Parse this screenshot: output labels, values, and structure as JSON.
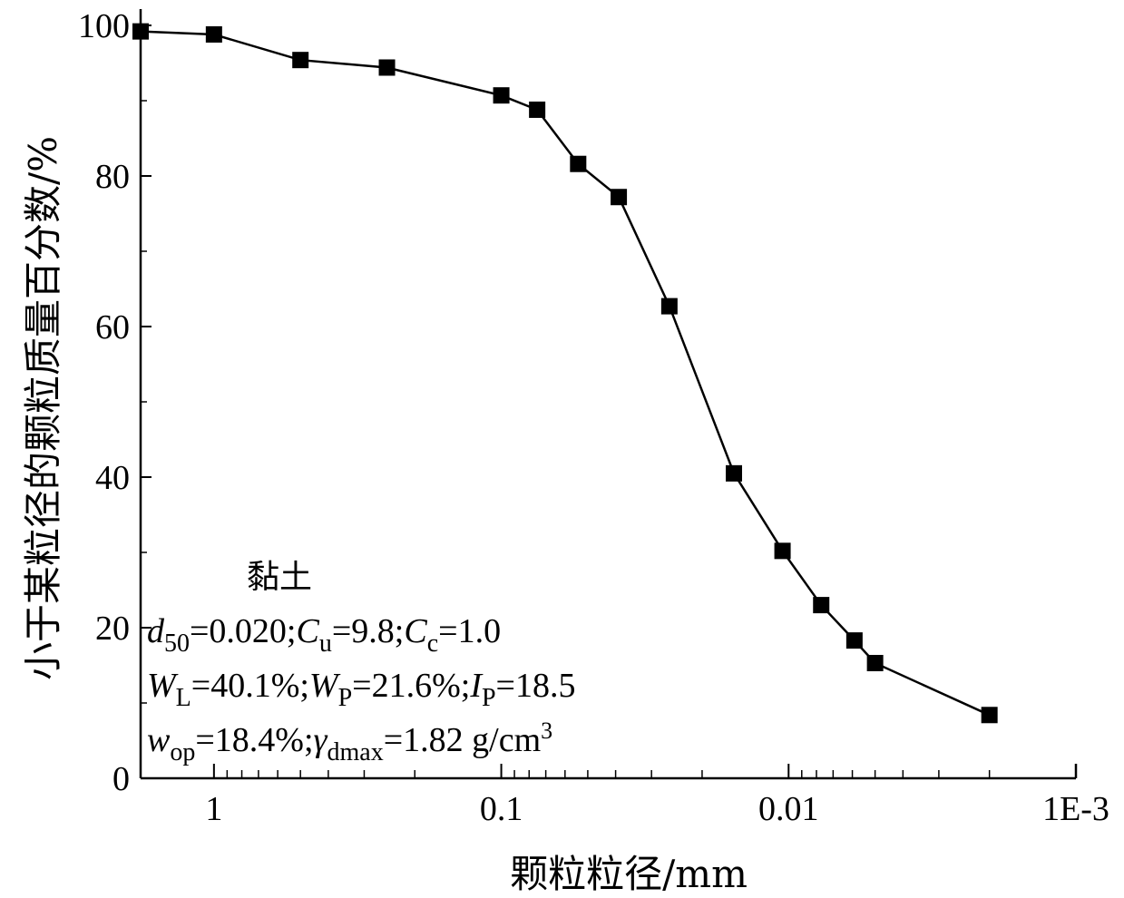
{
  "chart_data": {
    "type": "line",
    "x_scale": "log",
    "x_reversed": true,
    "xlim": [
      1.8,
      0.001
    ],
    "ylim": [
      0,
      100
    ],
    "xlabel": "颗粒粒径/mm",
    "ylabel": "小于某粒径的颗粒质量百分数/%",
    "x_ticks": [
      {
        "value": 1,
        "label": "1"
      },
      {
        "value": 0.1,
        "label": "0.1"
      },
      {
        "value": 0.01,
        "label": "0.01"
      },
      {
        "value": 0.001,
        "label": "1E-3"
      }
    ],
    "y_ticks": [
      0,
      20,
      40,
      60,
      80,
      100
    ],
    "marker": "square",
    "series": [
      {
        "x": [
          1.8,
          1.0,
          0.5,
          0.25,
          0.1,
          0.075,
          0.054,
          0.039,
          0.026,
          0.0155,
          0.0105,
          0.0077,
          0.0059,
          0.005,
          0.002
        ],
        "y": [
          99.2,
          98.8,
          95.4,
          94.4,
          90.7,
          88.8,
          81.6,
          77.2,
          62.7,
          40.5,
          30.2,
          23.0,
          18.3,
          15.3,
          8.4
        ]
      }
    ],
    "annotation": {
      "title": "黏土",
      "line1": [
        {
          "t": "d",
          "style": "italic"
        },
        {
          "t": "50",
          "style": "sub"
        },
        {
          "t": "=0.020;"
        },
        {
          "t": "C",
          "style": "italic"
        },
        {
          "t": "u",
          "style": "sub"
        },
        {
          "t": "=9.8;"
        },
        {
          "t": "C",
          "style": "italic"
        },
        {
          "t": "c",
          "style": "sub"
        },
        {
          "t": "=1.0"
        }
      ],
      "line2": [
        {
          "t": "W",
          "style": "italic"
        },
        {
          "t": "L",
          "style": "sub"
        },
        {
          "t": "=40.1%;"
        },
        {
          "t": "W",
          "style": "italic"
        },
        {
          "t": "P",
          "style": "sub"
        },
        {
          "t": "=21.6%;"
        },
        {
          "t": "I",
          "style": "italic"
        },
        {
          "t": "P",
          "style": "sub"
        },
        {
          "t": "=18.5"
        }
      ],
      "line3": [
        {
          "t": "w",
          "style": "italic"
        },
        {
          "t": "op",
          "style": "sub"
        },
        {
          "t": "=18.4%;"
        },
        {
          "t": "γ",
          "style": "italic"
        },
        {
          "t": "dmax",
          "style": "sub"
        },
        {
          "t": "=1.82 g/cm"
        },
        {
          "t": "3",
          "style": "sup"
        }
      ]
    }
  }
}
